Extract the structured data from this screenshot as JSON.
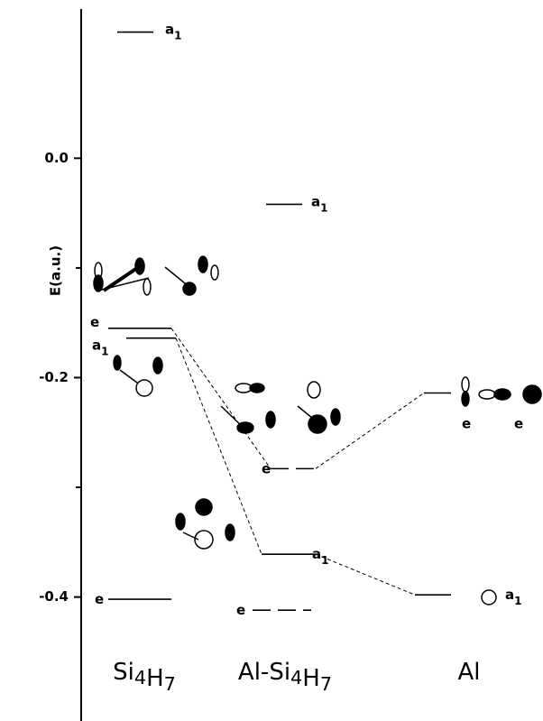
{
  "chart_data": {
    "type": "energy-levels",
    "y_label": "E(a.u.)",
    "ylim": [
      -0.513,
      0.136
    ],
    "yticks": [
      {
        "value": 0,
        "label": "0.0"
      },
      -0.2,
      -0.4
    ],
    "minor_yticks": [
      -0.1,
      -0.3
    ],
    "categories": [
      "Si4H7",
      "Al-Si4H7",
      "Al"
    ],
    "levels": [
      {
        "column": 0,
        "label": "a1",
        "value": 0.115
      },
      {
        "column": 0,
        "label": "e",
        "value": -0.155
      },
      {
        "column": 0,
        "label": "a1",
        "value": -0.164
      },
      {
        "column": 0,
        "label": "e",
        "value": -0.402
      },
      {
        "column": 1,
        "label": "a1",
        "value": -0.042
      },
      {
        "column": 1,
        "label": "e",
        "value": -0.283
      },
      {
        "column": 1,
        "label": "a1",
        "value": -0.361
      },
      {
        "column": 1,
        "label": "e",
        "value": -0.412
      },
      {
        "column": 2,
        "label": "e",
        "value": -0.214
      },
      {
        "column": 2,
        "label": "a1",
        "value": -0.398
      }
    ],
    "connections": [
      [
        1,
        5
      ],
      [
        2,
        6
      ],
      [
        5,
        8
      ],
      [
        6,
        9
      ]
    ]
  }
}
